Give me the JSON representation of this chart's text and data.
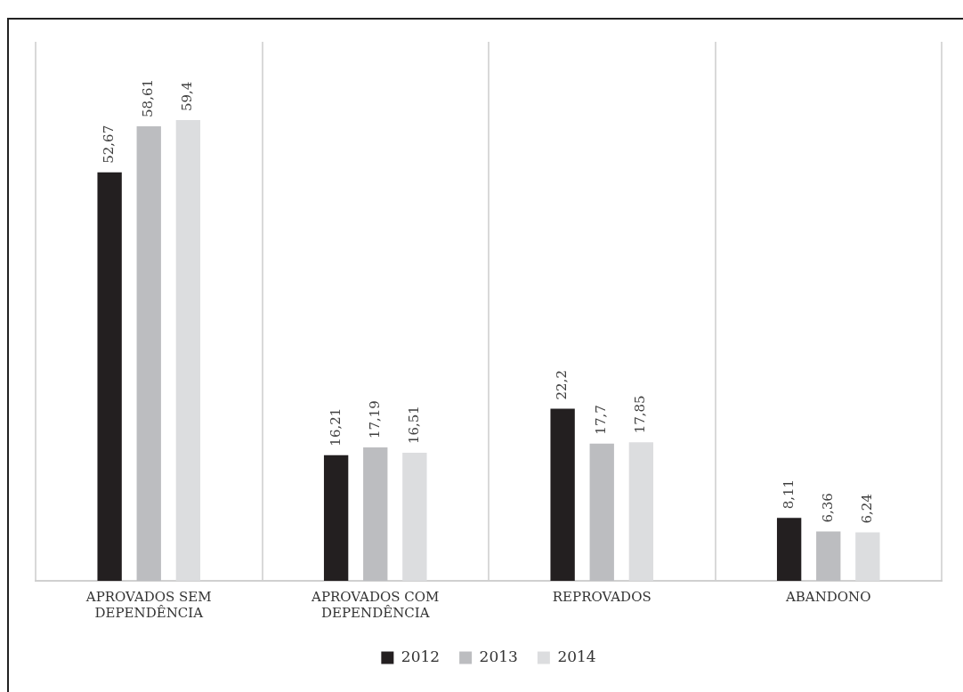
{
  "chart_data": {
    "type": "bar",
    "categories": [
      "APROVADOS SEM DEPENDÊNCIA",
      "APROVADOS COM DEPENDÊNCIA",
      "REPROVADOS",
      "ABANDONO"
    ],
    "series": [
      {
        "name": "2012",
        "color": "#231f20",
        "values": [
          52.67,
          16.21,
          22.2,
          8.11
        ],
        "value_labels": [
          "52,67",
          "16,21",
          "22,2",
          "8,11"
        ]
      },
      {
        "name": "2013",
        "color": "#bcbdc0",
        "values": [
          58.61,
          17.19,
          17.7,
          6.36
        ],
        "value_labels": [
          "58,61",
          "17,19",
          "17,7",
          "6,36"
        ]
      },
      {
        "name": "2014",
        "color": "#dcdddf",
        "values": [
          59.4,
          16.51,
          17.85,
          6.24
        ],
        "value_labels": [
          "59,4",
          "16,51",
          "17,85",
          "6,24"
        ]
      }
    ],
    "grid": "x",
    "legend": "bottom",
    "tick_labels": "x"
  }
}
